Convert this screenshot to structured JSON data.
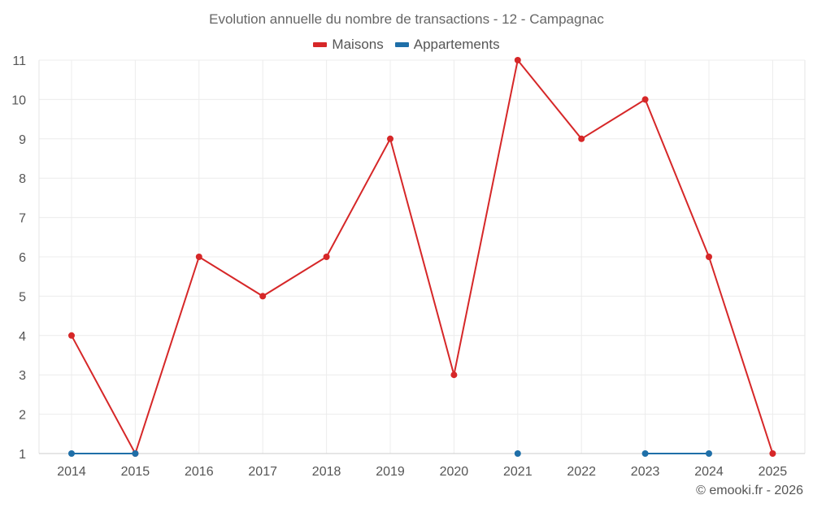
{
  "credit": "© emooki.fr - 2026",
  "chart_data": {
    "type": "line",
    "title": "Evolution annuelle du nombre de transactions - 12 - Campagnac",
    "xlabel": "",
    "ylabel": "",
    "categories": [
      "2014",
      "2015",
      "2016",
      "2017",
      "2018",
      "2019",
      "2020",
      "2021",
      "2022",
      "2023",
      "2024",
      "2025"
    ],
    "ylim": [
      1,
      11
    ],
    "yticks": [
      1,
      2,
      3,
      4,
      5,
      6,
      7,
      8,
      9,
      10,
      11
    ],
    "grid": true,
    "legend_position": "top-center",
    "series": [
      {
        "name": "Maisons",
        "color": "#d62728",
        "values": [
          4,
          1,
          6,
          5,
          6,
          9,
          3,
          11,
          9,
          10,
          6,
          1
        ]
      },
      {
        "name": "Appartements",
        "color": "#1f6fa8",
        "values": [
          1,
          1,
          null,
          null,
          null,
          null,
          null,
          1,
          null,
          1,
          1,
          null
        ]
      }
    ]
  }
}
